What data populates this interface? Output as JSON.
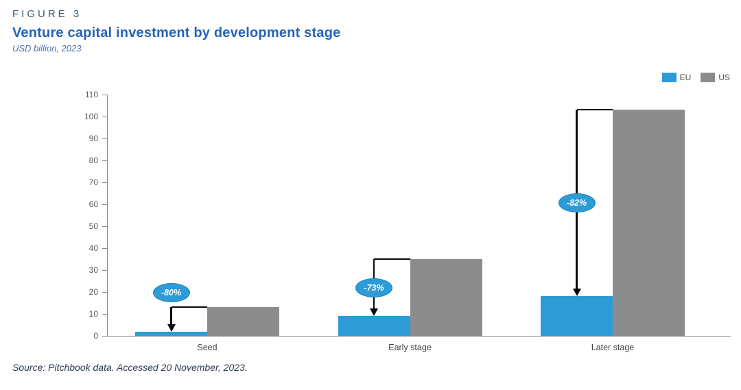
{
  "header": {
    "figure_label": "FIGURE 3",
    "title": "Venture capital investment by development stage",
    "subtitle": "USD billion, 2023"
  },
  "legend": [
    {
      "label": "EU",
      "color": "#2D9BD5"
    },
    {
      "label": "US",
      "color": "#8C8C8C"
    }
  ],
  "chart_data": {
    "type": "bar",
    "title": "Venture capital investment by development stage",
    "units": "USD billion, 2023",
    "categories": [
      "Seed",
      "Early stage",
      "Later stage"
    ],
    "series": [
      {
        "name": "EU",
        "color": "#2D9BD5",
        "values": [
          2,
          9,
          18
        ]
      },
      {
        "name": "US",
        "color": "#8C8C8C",
        "values": [
          13,
          35,
          103
        ]
      }
    ],
    "annotations": [
      {
        "category": "Seed",
        "label": "-80%"
      },
      {
        "category": "Early stage",
        "label": "-73%"
      },
      {
        "category": "Later stage",
        "label": "-82%"
      }
    ],
    "xlabel": "",
    "ylabel": "",
    "ylim": [
      0,
      110
    ],
    "ytick_step": 10,
    "grid": false,
    "legend_position": "top-right",
    "annotation_color": "#2D9BD5",
    "arrow_color": "#0a0a0a"
  },
  "source": "Source: Pitchbook data. Accessed 20 November, 2023."
}
